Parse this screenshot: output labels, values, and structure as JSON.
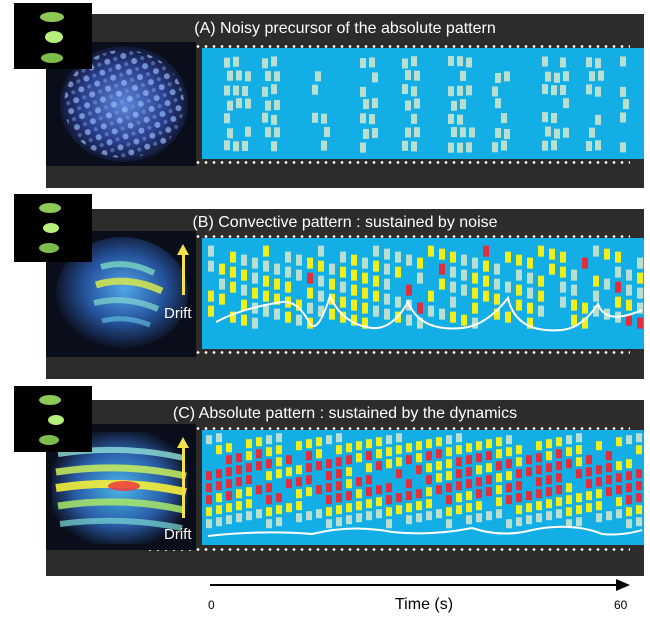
{
  "panels": [
    {
      "id": "A",
      "title": "(A) Noisy precursor of the absolute pattern",
      "drift_label": ""
    },
    {
      "id": "B",
      "title": "(B) Convective pattern : sustained by noise",
      "drift_label": "Drift"
    },
    {
      "id": "C",
      "title": "(C) Absolute pattern : sustained by the dynamics",
      "drift_label": "Drift"
    }
  ],
  "time_axis": {
    "label": "Time (s)",
    "start_label": "0",
    "end_label": "60"
  },
  "colors": {
    "background_strip": "#2e2b2b",
    "pattern_background": "#14aee6",
    "weak_mark": "#b9dfd0",
    "medium_mark": "#f2ee1c",
    "strong_mark": "#e32d3c",
    "drift_arrow": "#f5e24a"
  }
}
